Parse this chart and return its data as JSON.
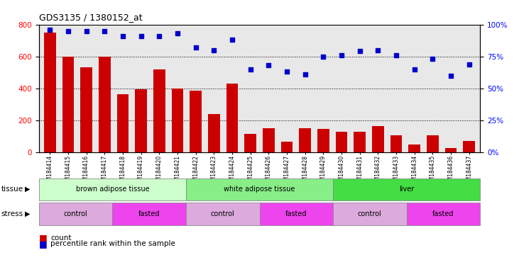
{
  "title": "GDS3135 / 1380152_at",
  "samples": [
    "GSM184414",
    "GSM184415",
    "GSM184416",
    "GSM184417",
    "GSM184418",
    "GSM184419",
    "GSM184420",
    "GSM184421",
    "GSM184422",
    "GSM184423",
    "GSM184424",
    "GSM184425",
    "GSM184426",
    "GSM184427",
    "GSM184428",
    "GSM184429",
    "GSM184430",
    "GSM184431",
    "GSM184432",
    "GSM184433",
    "GSM184434",
    "GSM184435",
    "GSM184436",
    "GSM184437"
  ],
  "counts": [
    750,
    600,
    530,
    600,
    365,
    395,
    520,
    400,
    385,
    240,
    430,
    115,
    150,
    65,
    150,
    145,
    130,
    130,
    165,
    105,
    50,
    105,
    25,
    70
  ],
  "percentiles": [
    96,
    95,
    95,
    95,
    91,
    91,
    91,
    93,
    82,
    80,
    88,
    65,
    68,
    63,
    61,
    75,
    76,
    79,
    80,
    76,
    65,
    73,
    60,
    69
  ],
  "bar_color": "#cc0000",
  "dot_color": "#0000cc",
  "ylim_left": [
    0,
    800
  ],
  "ylim_right": [
    0,
    100
  ],
  "yticks_left": [
    0,
    200,
    400,
    600,
    800
  ],
  "yticks_right": [
    0,
    25,
    50,
    75,
    100
  ],
  "ytick_labels_right": [
    "0%",
    "25%",
    "50%",
    "75%",
    "100%"
  ],
  "plot_bg_color": "#e8e8e8",
  "tissue_groups_colored": [
    {
      "label": "brown adipose tissue",
      "start": 0,
      "end": 7,
      "color": "#ccffcc"
    },
    {
      "label": "white adipose tissue",
      "start": 8,
      "end": 15,
      "color": "#88ee88"
    },
    {
      "label": "liver",
      "start": 16,
      "end": 23,
      "color": "#44dd44"
    }
  ],
  "stress_groups_colored": [
    {
      "label": "control",
      "start": 0,
      "end": 3,
      "color": "#ddaadd"
    },
    {
      "label": "fasted",
      "start": 4,
      "end": 7,
      "color": "#ee44ee"
    },
    {
      "label": "control",
      "start": 8,
      "end": 11,
      "color": "#ddaadd"
    },
    {
      "label": "fasted",
      "start": 12,
      "end": 15,
      "color": "#ee44ee"
    },
    {
      "label": "control",
      "start": 16,
      "end": 19,
      "color": "#ddaadd"
    },
    {
      "label": "fasted",
      "start": 20,
      "end": 23,
      "color": "#ee44ee"
    }
  ]
}
